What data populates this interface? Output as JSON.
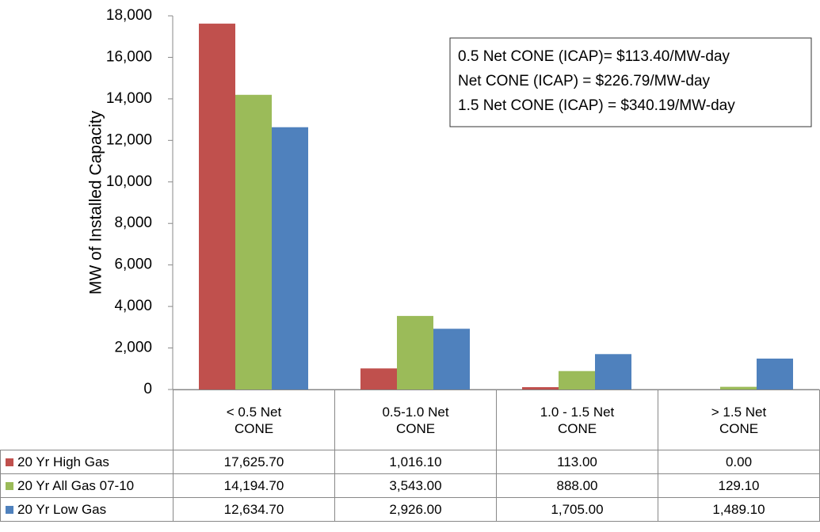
{
  "chart_data": {
    "type": "bar",
    "y_label": "MW of Installed Capacity",
    "annotation": [
      "0.5 Net CONE (ICAP)= $113.40/MW-day",
      "Net CONE (ICAP) = $226.79/MW-day",
      "1.5 Net CONE (ICAP) = $340.19/MW-day"
    ],
    "categories": [
      "< 0.5 Net CONE",
      "0.5-1.0 Net CONE",
      "1.0 - 1.5 Net CONE",
      "> 1.5 Net CONE"
    ],
    "series": [
      {
        "name": "20 Yr High Gas",
        "color": "#c0504d",
        "values": [
          17625.7,
          1016.1,
          113,
          0
        ],
        "value_labels": [
          "17,625.70",
          "1,016.10",
          "113.00",
          "0.00"
        ]
      },
      {
        "name": "20 Yr All Gas 07-10",
        "color": "#9bbb59",
        "values": [
          14194.7,
          3543,
          888,
          129.1
        ],
        "value_labels": [
          "14,194.70",
          "3,543.00",
          "888.00",
          "129.10"
        ]
      },
      {
        "name": "20 Yr Low Gas",
        "color": "#4f81bd",
        "values": [
          12634.7,
          2926,
          1705,
          1489.1
        ],
        "value_labels": [
          "12,634.70",
          "2,926.00",
          "1,705.00",
          "1,489.10"
        ]
      }
    ],
    "ylim": [
      0,
      18000
    ],
    "yticks": [
      0,
      {
        "value": 2000,
        "label": "2,000"
      },
      {
        "value": 4000,
        "label": "4,000"
      },
      {
        "value": 6000,
        "label": "6,000"
      },
      {
        "value": 8000,
        "label": "8,000"
      },
      {
        "value": 10000,
        "label": "10,000"
      },
      {
        "value": 12000,
        "label": "12,000"
      },
      {
        "value": 14000,
        "label": "14,000"
      },
      {
        "value": 16000,
        "label": "16,000"
      },
      {
        "value": 18000,
        "label": "18,000"
      }
    ]
  }
}
